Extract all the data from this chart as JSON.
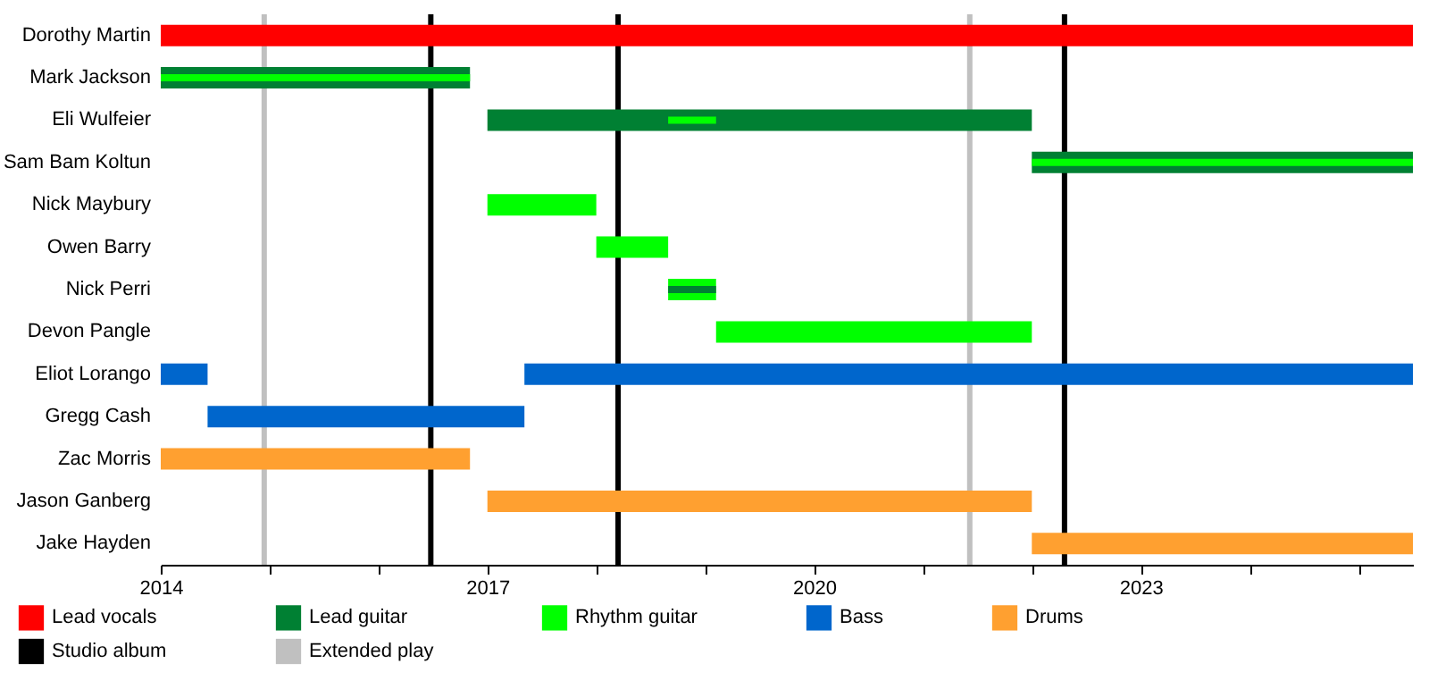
{
  "chart_data": {
    "type": "bar",
    "orientation": "horizontal",
    "legend": "bottom",
    "categories": [
      "Dorothy Martin",
      "Mark Jackson",
      "Eli Wulfeier",
      "Sam Bam Koltun",
      "Nick Maybury",
      "Owen Barry",
      "Nick Perri",
      "Devon Pangle",
      "Eliot Lorango",
      "Gregg Cash",
      "Zac Morris",
      "Jason Ganberg",
      "Jake Hayden"
    ],
    "xlim": [
      2014,
      2025.5
    ],
    "xticks": [
      2014,
      {
        "value": 2015,
        "label": null
      },
      {
        "value": 2016,
        "label": null
      },
      2017,
      {
        "value": 2018,
        "label": null
      },
      {
        "value": 2019,
        "label": null
      },
      2020,
      {
        "value": 2021,
        "label": null
      },
      {
        "value": 2022,
        "label": null
      },
      2023,
      {
        "value": 2024,
        "label": null
      },
      {
        "value": 2025,
        "label": null
      }
    ],
    "series": [
      {
        "name": "Lead vocals",
        "color": "#ff0000",
        "base": [
          2014,
          null,
          null,
          null,
          null,
          null,
          null,
          null,
          null,
          null,
          null,
          null,
          null
        ],
        "values": [
          11.5,
          null,
          null,
          null,
          null,
          null,
          null,
          null,
          null,
          null,
          null,
          null,
          null
        ]
      },
      {
        "name": "Lead guitar",
        "color": "#008033",
        "base": [
          null,
          2014,
          2017,
          2022,
          null,
          null,
          null,
          null,
          null,
          null,
          null,
          null,
          null
        ],
        "values": [
          null,
          2.84,
          5.0,
          3.5,
          null,
          null,
          null,
          null,
          null,
          null,
          null,
          null,
          null
        ]
      },
      {
        "name": "Rhythm guitar",
        "color": "#00ff00",
        "base": [
          null,
          2014,
          2018.66,
          2022,
          2017,
          2018.0,
          2018.66,
          2019.1,
          null,
          null,
          null,
          null,
          null
        ],
        "values": [
          null,
          2.84,
          0.44,
          3.5,
          1.0,
          0.66,
          0.44,
          2.9,
          null,
          null,
          null,
          null,
          null
        ]
      },
      {
        "name": "Bass",
        "color": "#0066cc",
        "base": [
          null,
          null,
          null,
          null,
          null,
          null,
          null,
          null,
          2014,
          2014.43,
          null,
          null,
          null
        ],
        "values": [
          null,
          null,
          null,
          null,
          null,
          null,
          null,
          null,
          0.43,
          2.91,
          null,
          null,
          null
        ]
      },
      {
        "name": "Drums",
        "color": "#ffa030",
        "base": [
          null,
          null,
          null,
          null,
          null,
          null,
          null,
          null,
          null,
          null,
          2014,
          2017,
          2022
        ],
        "values": [
          null,
          null,
          null,
          null,
          null,
          null,
          null,
          null,
          null,
          null,
          2.84,
          5.0,
          3.5
        ]
      },
      {
        "color": "#008033",
        "base": [
          null,
          null,
          null,
          null,
          null,
          null,
          2018.66,
          null,
          null,
          null,
          null,
          null,
          null
        ],
        "values": [
          null,
          null,
          null,
          null,
          null,
          null,
          0.44,
          null,
          null,
          null,
          null,
          null,
          null
        ]
      },
      {
        "color": "#0066cc",
        "base": [
          null,
          null,
          null,
          null,
          null,
          null,
          null,
          null,
          2017.34,
          null,
          null,
          null,
          null
        ],
        "values": [
          null,
          null,
          null,
          null,
          null,
          null,
          null,
          null,
          8.16,
          null,
          null,
          null,
          null
        ]
      }
    ],
    "ref_lines": [
      {
        "axis": "x",
        "value": 2016.48,
        "label": "Studio album",
        "color": "#000000"
      },
      {
        "axis": "x",
        "value": 2018.2,
        "color": "#000000"
      },
      {
        "axis": "x",
        "value": 2022.3,
        "color": "#000000"
      },
      {
        "axis": "x",
        "value": 2014.95,
        "label": "Extended play",
        "color": "#c0c0c0"
      },
      {
        "axis": "x",
        "value": 2021.43,
        "color": "#c0c0c0"
      }
    ]
  }
}
